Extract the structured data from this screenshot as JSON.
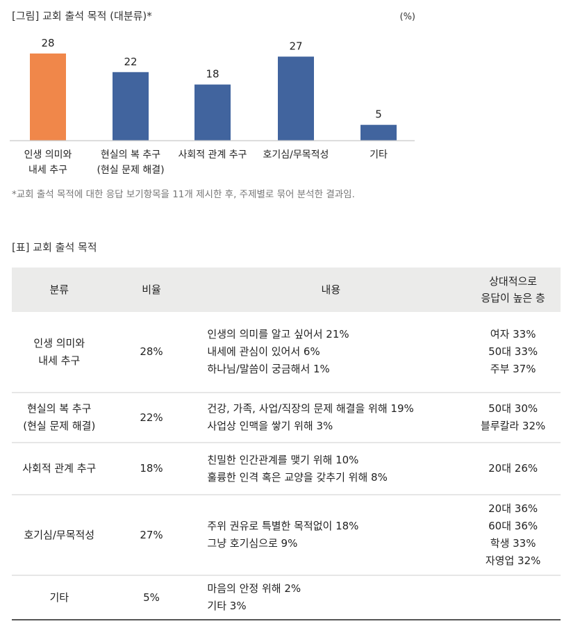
{
  "title": "[그림] 교회 출석 목적 (대분류)*",
  "unit": "(%)",
  "note": "*교회 출석 목적에 대한 응답 보기항목을 11개 제시한 후, 주제별로 묶어 분석한 결과임.",
  "chart_data": {
    "type": "bar",
    "title": "[그림] 교회 출석 목적 (대분류)*",
    "categories": [
      [
        "인생 의미와",
        "내세 추구"
      ],
      [
        "현실의 복 추구",
        "(현실 문제 해결)"
      ],
      [
        "사회적 관계 추구"
      ],
      [
        "호기심/무목적성"
      ],
      [
        "기타"
      ]
    ],
    "values": [
      28,
      22,
      18,
      27,
      5
    ],
    "colors": [
      "#f0874a",
      "#41649e",
      "#41649e",
      "#41649e",
      "#41649e"
    ],
    "ylabel": "(%)",
    "ylim": [
      0,
      28
    ],
    "grid": false
  },
  "table": {
    "title": "[표] 교회 출석 목적",
    "headers": [
      "분류",
      "비율",
      "내용",
      [
        "상대적으로",
        "응답이 높은 층"
      ]
    ],
    "rows": [
      {
        "cat": [
          "인생 의미와",
          "내세 추구"
        ],
        "rate": "28%",
        "content": [
          "인생의 의미를 알고 싶어서 21%",
          "내세에 관심이 있어서 6%",
          "하나님/말씀이 궁금해서 1%"
        ],
        "groups": [
          "여자 33%",
          "50대 33%",
          "주부 37%"
        ],
        "h": 116
      },
      {
        "cat": [
          "현실의 복 추구",
          "(현실 문제 해결)"
        ],
        "rate": "22%",
        "content": [
          "건강, 가족, 사업/직장의 문제 해결을 위해 19%",
          "사업상 인맥을 쌓기 위해 3%"
        ],
        "groups": [
          "50대 30%",
          "블루칼라 32%"
        ],
        "h": 72
      },
      {
        "cat": [
          "사회적 관계 추구"
        ],
        "rate": "18%",
        "content": [
          "친밀한 인간관계를 맺기 위해 10%",
          "훌륭한 인격 혹은 교양을 갖추기 위해 8%"
        ],
        "groups": [
          "20대 26%"
        ],
        "h": 75
      },
      {
        "cat": [
          "호기심/무목적성"
        ],
        "rate": "27%",
        "content": [
          "주위 권유로 특별한 목적없이 18%",
          "그냥 호기심으로 9%"
        ],
        "groups": [
          "20대 36%",
          "60대 36%",
          "학생 33%",
          "자영업 32%"
        ],
        "h": 116
      },
      {
        "cat": [
          "기타"
        ],
        "rate": "5%",
        "content": [
          "마음의 안정 위해 2%",
          "기타 3%"
        ],
        "groups": [],
        "h": 64
      }
    ]
  }
}
